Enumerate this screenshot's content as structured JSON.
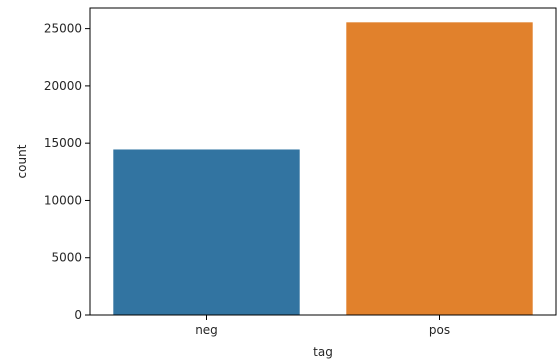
{
  "chart_data": {
    "type": "bar",
    "categories": [
      "neg",
      "pos"
    ],
    "values": [
      14450,
      25550
    ],
    "title": "",
    "xlabel": "tag",
    "ylabel": "count",
    "ylim": [
      0,
      26800
    ],
    "yticks": [
      0,
      5000,
      10000,
      15000,
      20000,
      25000
    ],
    "yticklabels": [
      "0",
      "5000",
      "10000",
      "15000",
      "20000",
      "25000"
    ],
    "grid": false,
    "legend": "none",
    "colors": [
      "#3274a1",
      "#e1812c"
    ]
  }
}
